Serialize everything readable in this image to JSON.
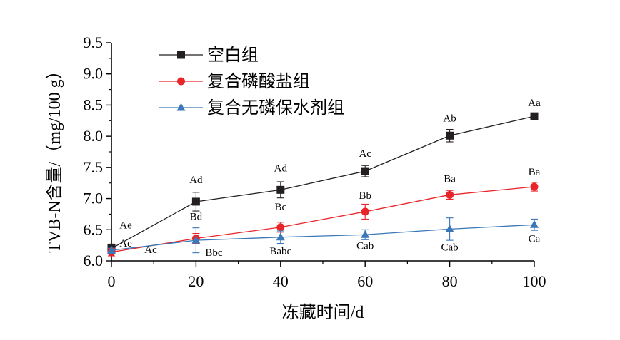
{
  "chart_data": {
    "type": "line",
    "title": "",
    "xlabel": "冻藏时间/d",
    "ylabel": "TVB-N含量/（mg/100 g）",
    "xlim": [
      0,
      100
    ],
    "ylim": [
      6.0,
      9.5
    ],
    "x_ticks": [
      "0",
      "20",
      "40",
      "60",
      "80",
      "100"
    ],
    "y_ticks": [
      "6.0",
      "6.5",
      "7.0",
      "7.5",
      "8.0",
      "8.5",
      "9.0",
      "9.5"
    ],
    "grid": false,
    "legend_position": "top-left",
    "x": [
      0,
      20,
      40,
      60,
      80,
      100
    ],
    "series": [
      {
        "name": "空白组",
        "color": "#231f20",
        "marker": "square",
        "values": [
          6.2,
          6.95,
          7.14,
          7.44,
          8.01,
          8.32
        ],
        "errors": [
          0.07,
          0.15,
          0.13,
          0.09,
          0.1,
          0.04
        ],
        "labels": [
          "Ae",
          "Ad",
          "Ad",
          "Ac",
          "Ab",
          "Aa"
        ]
      },
      {
        "name": "复合磷酸盐组",
        "color": "#e8262a",
        "marker": "circle",
        "values": [
          6.14,
          6.36,
          6.54,
          6.79,
          7.06,
          7.19
        ],
        "errors": [
          0.06,
          0.08,
          0.08,
          0.12,
          0.07,
          0.07
        ],
        "labels": [
          "Ae",
          "Bd",
          "Bc",
          "Bb",
          "Ba",
          "Ba"
        ]
      },
      {
        "name": "复合无磷保水剂组",
        "color": "#3a78b8",
        "marker": "triangle",
        "values": [
          6.17,
          6.33,
          6.38,
          6.42,
          6.51,
          6.58
        ],
        "errors": [
          0.05,
          0.2,
          0.1,
          0.08,
          0.18,
          0.09
        ],
        "labels": [
          "Ac",
          "Bbc",
          "Babc",
          "Cab",
          "Cab",
          "Ca"
        ]
      }
    ]
  }
}
